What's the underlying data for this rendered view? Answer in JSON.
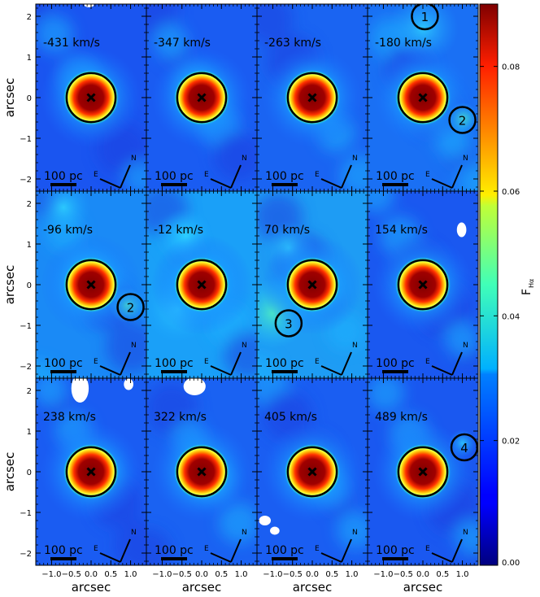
{
  "chart_data": {
    "type": "heatmap",
    "layout": "3x4 grid of channel maps",
    "x_axis": {
      "label": "arcsec",
      "range": [
        -1.4,
        1.4
      ],
      "tick_values": [
        -1.0,
        -0.5,
        0.0,
        0.5,
        1.0
      ],
      "tick_labels": [
        "−1.0",
        "−0.5",
        "0.0",
        "0.5",
        "1.0"
      ]
    },
    "y_axis": {
      "label": "arcsec",
      "range": [
        -2.3,
        2.3
      ],
      "tick_values": [
        -2,
        -1,
        0,
        1,
        2
      ],
      "tick_labels": [
        "−2",
        "−1",
        "0",
        "1",
        "2"
      ]
    },
    "colorbar": {
      "label": "F",
      "label_sub": "Hα",
      "range": [
        0.0,
        0.09
      ],
      "tick_values": [
        0.0,
        0.02,
        0.04,
        0.06,
        0.08
      ],
      "tick_labels": [
        "0.00",
        "0.02",
        "0.04",
        "0.06",
        "0.08"
      ],
      "colormap": "jet"
    },
    "scale_bar_label": "100 pc",
    "compass": {
      "north": "N",
      "east": "E"
    },
    "nucleus": {
      "x": 0.0,
      "y": 0.0,
      "circle_radius_arcsec": 0.62
    },
    "panels": [
      {
        "velocity": "-431 km/s",
        "features": []
      },
      {
        "velocity": "-347 km/s",
        "features": []
      },
      {
        "velocity": "-263 km/s",
        "features": []
      },
      {
        "velocity": "-180 km/s",
        "features": [
          {
            "label": "1",
            "x": 0.05,
            "y": 2.0
          },
          {
            "label": "2",
            "x": 1.0,
            "y": -0.55
          }
        ]
      },
      {
        "velocity": "-96 km/s",
        "features": [
          {
            "label": "2",
            "x": 1.0,
            "y": -0.55
          }
        ]
      },
      {
        "velocity": "-12 km/s",
        "features": []
      },
      {
        "velocity": "70 km/s",
        "features": [
          {
            "label": "3",
            "x": -0.6,
            "y": -0.95
          }
        ]
      },
      {
        "velocity": "154 km/s",
        "features": []
      },
      {
        "velocity": "238 km/s",
        "features": []
      },
      {
        "velocity": "322 km/s",
        "features": []
      },
      {
        "velocity": "405 km/s",
        "features": []
      },
      {
        "velocity": "489 km/s",
        "features": [
          {
            "label": "4",
            "x": 1.05,
            "y": 0.6
          }
        ]
      }
    ]
  }
}
